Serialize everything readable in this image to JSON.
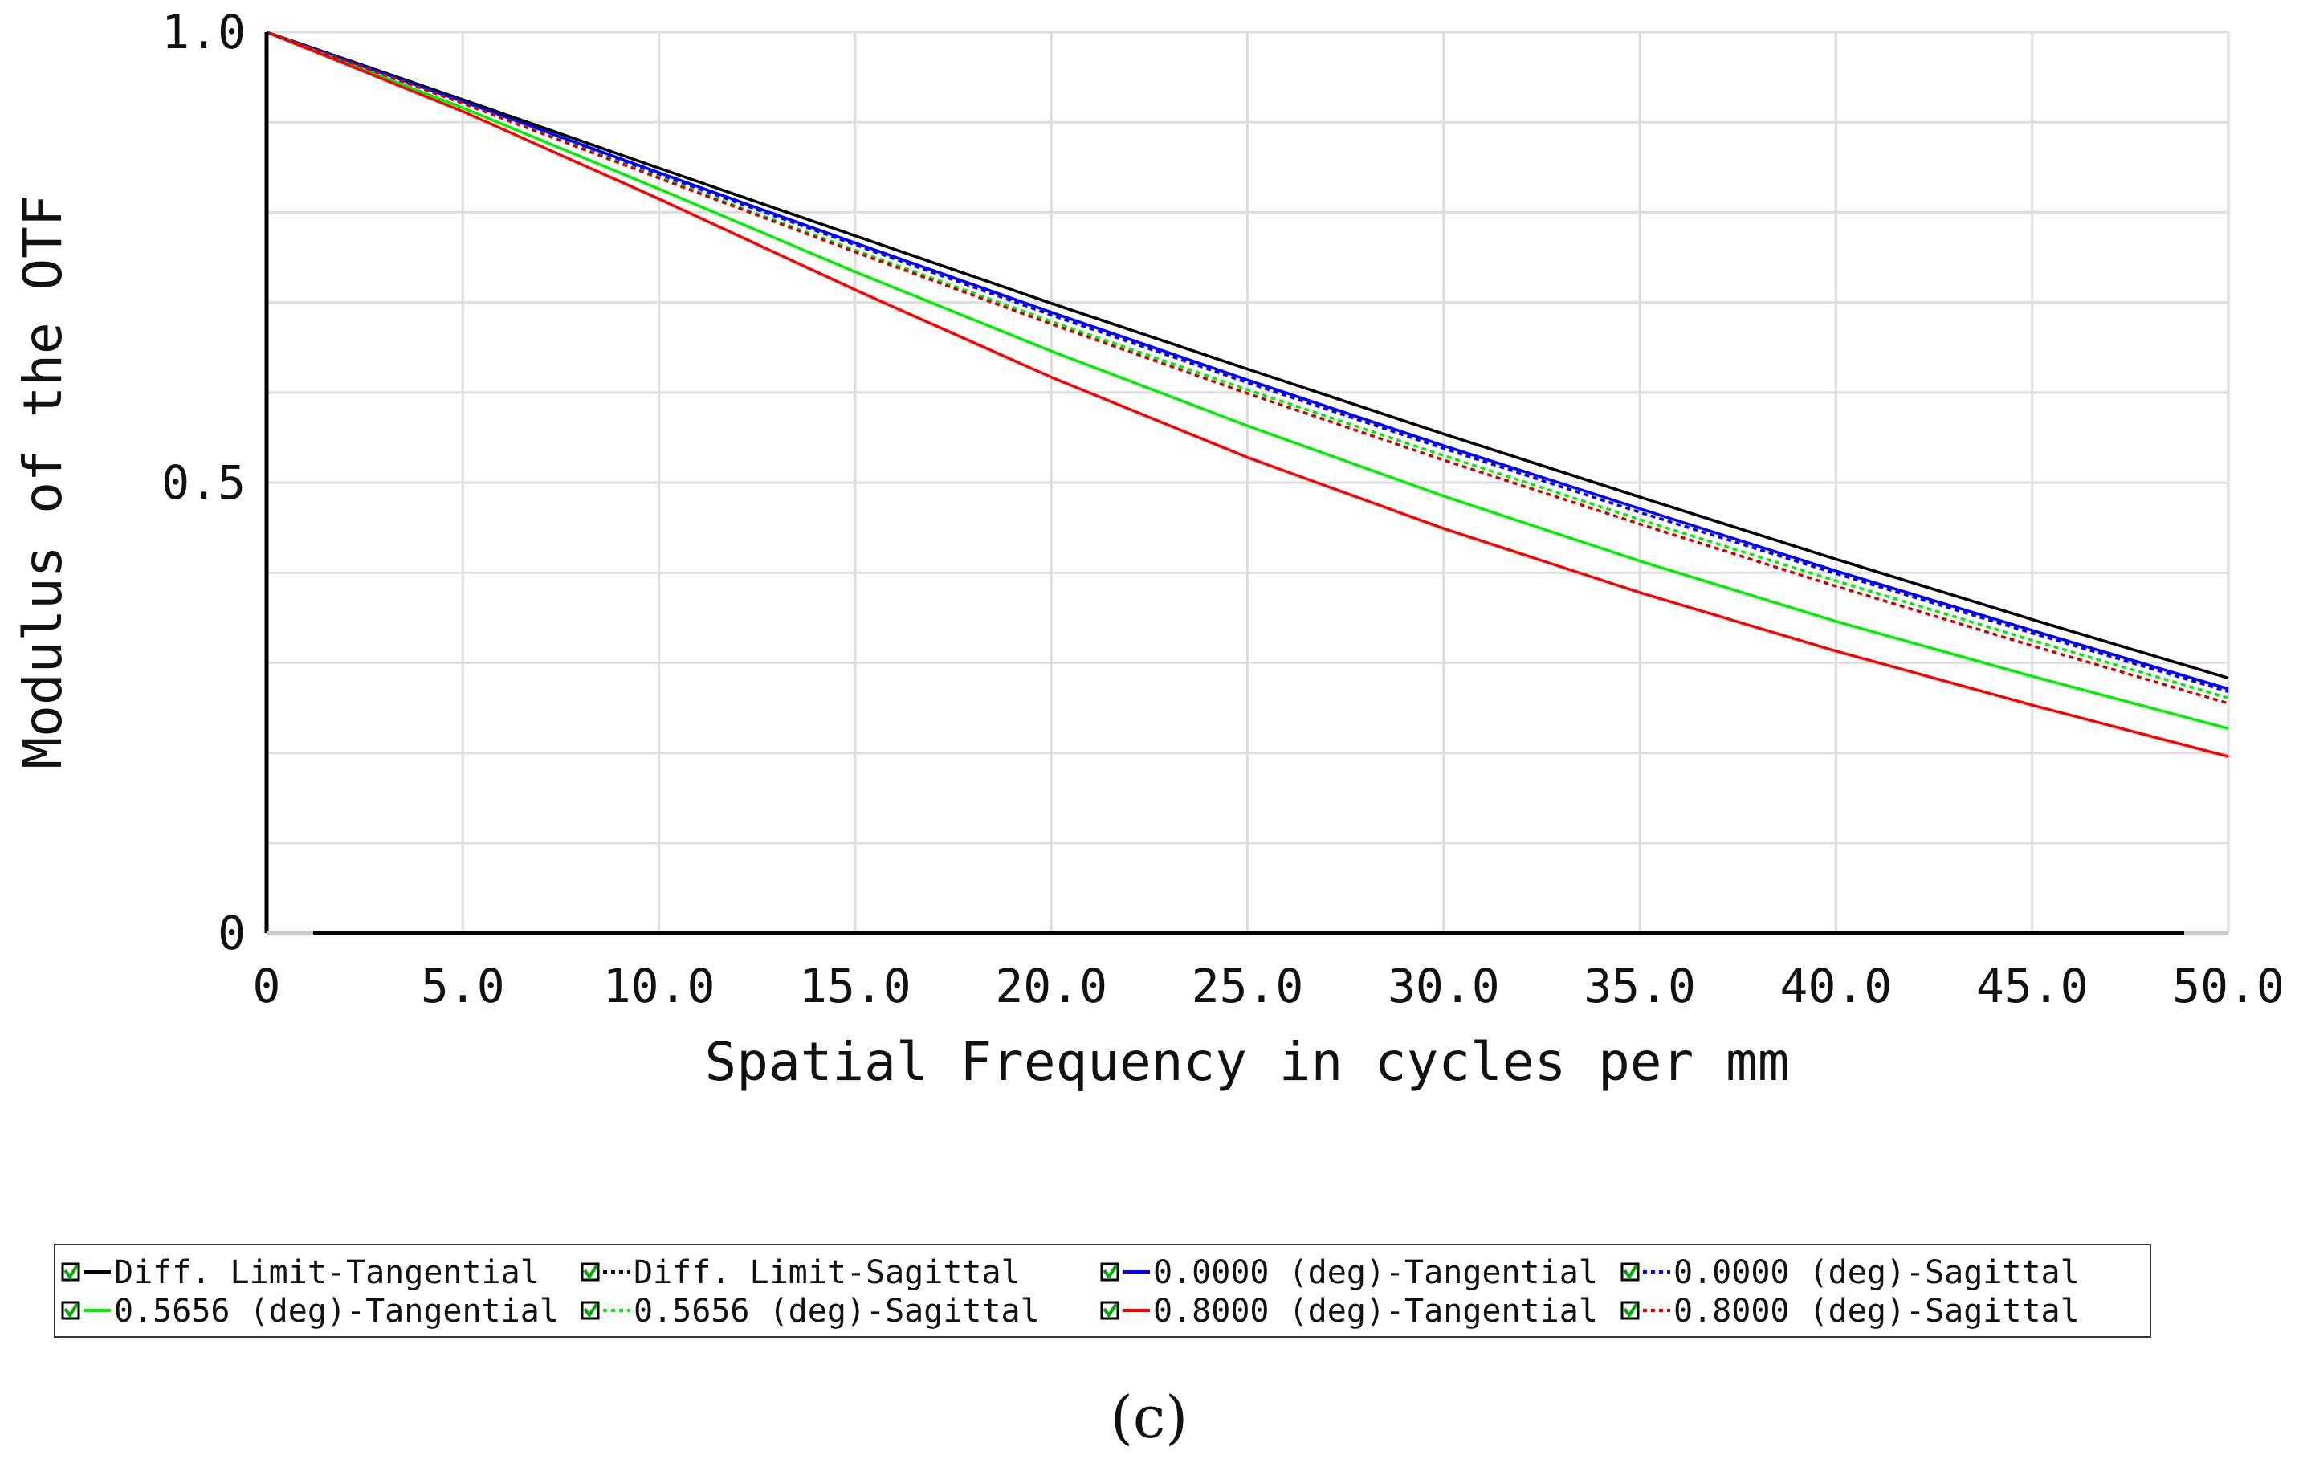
{
  "chart_data": {
    "type": "line",
    "xlabel": "Spatial Frequency in cycles per mm",
    "ylabel": "Modulus of the OTF",
    "xlim": [
      0,
      50
    ],
    "ylim": [
      0,
      1
    ],
    "grid": true,
    "x_ticks": [
      {
        "value": 0,
        "label": "0"
      },
      {
        "value": 5,
        "label": "5.0"
      },
      {
        "value": 10,
        "label": "10.0"
      },
      {
        "value": 15,
        "label": "15.0"
      },
      {
        "value": 20,
        "label": "20.0"
      },
      {
        "value": 25,
        "label": "25.0"
      },
      {
        "value": 30,
        "label": "30.0"
      },
      {
        "value": 35,
        "label": "35.0"
      },
      {
        "value": 40,
        "label": "40.0"
      },
      {
        "value": 45,
        "label": "45.0"
      },
      {
        "value": 50,
        "label": "50.0"
      }
    ],
    "y_ticks": [
      {
        "value": 0,
        "label": "0"
      },
      {
        "value": 0.5,
        "label": "0.5"
      },
      {
        "value": 1,
        "label": "1.0"
      }
    ],
    "y_gridlines": [
      0.1,
      0.2,
      0.3,
      0.4,
      0.5,
      0.6,
      0.7,
      0.8,
      0.9,
      1.0
    ],
    "x": [
      0,
      5,
      10,
      15,
      20,
      25,
      30,
      35,
      40,
      45,
      50
    ],
    "series": [
      {
        "name": "Diff. Limit-Tangential",
        "color": "#000000",
        "dash": "solid",
        "values": [
          1.0,
          0.925,
          0.849,
          0.774,
          0.699,
          0.626,
          0.554,
          0.484,
          0.415,
          0.348,
          0.283
        ]
      },
      {
        "name": "Diff. Limit-Sagittal",
        "color": "#000000",
        "dash": "dotted",
        "values": [
          1.0,
          0.925,
          0.849,
          0.774,
          0.699,
          0.626,
          0.554,
          0.484,
          0.415,
          0.348,
          0.283
        ]
      },
      {
        "name": "0.0000 (deg)-Tangential",
        "color": "#0000ff",
        "dash": "solid",
        "values": [
          1.0,
          0.923,
          0.844,
          0.766,
          0.689,
          0.614,
          0.541,
          0.471,
          0.402,
          0.336,
          0.271
        ]
      },
      {
        "name": "0.0000 (deg)-Sagittal",
        "color": "#0000ff",
        "dash": "dotted",
        "values": [
          1.0,
          0.922,
          0.842,
          0.764,
          0.686,
          0.611,
          0.538,
          0.467,
          0.399,
          0.333,
          0.268
        ]
      },
      {
        "name": "0.5656 (deg)-Tangential",
        "color": "#00ee00",
        "dash": "solid",
        "values": [
          1.0,
          0.916,
          0.826,
          0.734,
          0.646,
          0.563,
          0.485,
          0.413,
          0.346,
          0.285,
          0.227
        ]
      },
      {
        "name": "0.5656 (deg)-Sagittal",
        "color": "#00ee00",
        "dash": "dotted",
        "values": [
          1.0,
          0.921,
          0.839,
          0.758,
          0.679,
          0.603,
          0.53,
          0.459,
          0.391,
          0.325,
          0.261
        ]
      },
      {
        "name": "0.8000 (deg)-Tangential",
        "color": "#ff0000",
        "dash": "solid",
        "values": [
          1.0,
          0.912,
          0.815,
          0.714,
          0.617,
          0.528,
          0.449,
          0.378,
          0.313,
          0.253,
          0.196
        ]
      },
      {
        "name": "0.8000 (deg)-Sagittal",
        "color": "#cc0000",
        "dash": "dotted",
        "values": [
          1.0,
          0.921,
          0.838,
          0.756,
          0.676,
          0.599,
          0.525,
          0.454,
          0.385,
          0.319,
          0.255
        ]
      }
    ],
    "legend_position": "bottom"
  },
  "caption": "(c)"
}
